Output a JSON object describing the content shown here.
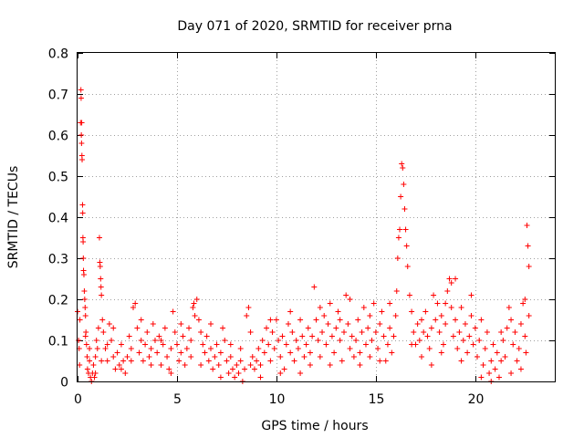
{
  "chart_data": {
    "type": "scatter",
    "title": "Day 071 of 2020, SRMTID for receiver prna",
    "xlabel": "GPS time / hours",
    "ylabel": "SRMTID / TECUs",
    "xlim": [
      0,
      24
    ],
    "ylim": [
      0,
      0.8
    ],
    "xticks": [
      0,
      5,
      10,
      15,
      20
    ],
    "yticks": [
      0,
      0.1,
      0.2,
      0.3,
      0.4,
      0.5,
      0.6,
      0.7,
      0.8
    ],
    "xtick_labels": [
      "0",
      "5",
      "10",
      "15",
      "20"
    ],
    "ytick_labels": [
      "0",
      "0.1",
      "0.2",
      "0.3",
      "0.4",
      "0.5",
      "0.6",
      "0.7",
      "0.8"
    ],
    "grid": true,
    "marker": "+",
    "color": "#ff0000",
    "series": [
      {
        "name": "SRMTID",
        "points": [
          [
            0.0,
            0.17
          ],
          [
            0.05,
            0.1
          ],
          [
            0.08,
            0.08
          ],
          [
            0.1,
            0.04
          ],
          [
            0.12,
            0.15
          ],
          [
            0.15,
            0.63
          ],
          [
            0.17,
            0.71
          ],
          [
            0.18,
            0.69
          ],
          [
            0.19,
            0.6
          ],
          [
            0.2,
            0.58
          ],
          [
            0.21,
            0.63
          ],
          [
            0.22,
            0.55
          ],
          [
            0.23,
            0.54
          ],
          [
            0.25,
            0.43
          ],
          [
            0.26,
            0.41
          ],
          [
            0.27,
            0.35
          ],
          [
            0.28,
            0.34
          ],
          [
            0.29,
            0.3
          ],
          [
            0.3,
            0.27
          ],
          [
            0.32,
            0.26
          ],
          [
            0.34,
            0.22
          ],
          [
            0.36,
            0.2
          ],
          [
            0.38,
            0.18
          ],
          [
            0.4,
            0.16
          ],
          [
            0.42,
            0.12
          ],
          [
            0.45,
            0.09
          ],
          [
            0.48,
            0.06
          ],
          [
            0.5,
            0.03
          ],
          [
            0.55,
            0.02
          ],
          [
            0.6,
            0.05
          ],
          [
            0.65,
            0.01
          ],
          [
            0.7,
            0.0
          ],
          [
            0.75,
            0.02
          ],
          [
            0.8,
            0.04
          ],
          [
            0.85,
            0.01
          ],
          [
            0.9,
            0.06
          ],
          [
            0.95,
            0.1
          ],
          [
            1.0,
            0.08
          ],
          [
            1.05,
            0.13
          ],
          [
            1.1,
            0.35
          ],
          [
            1.12,
            0.29
          ],
          [
            1.14,
            0.28
          ],
          [
            1.16,
            0.25
          ],
          [
            1.18,
            0.23
          ],
          [
            1.2,
            0.21
          ],
          [
            1.25,
            0.15
          ],
          [
            1.3,
            0.12
          ],
          [
            1.4,
            0.08
          ],
          [
            1.5,
            0.05
          ],
          [
            1.6,
            0.14
          ],
          [
            1.7,
            0.1
          ],
          [
            1.8,
            0.06
          ],
          [
            1.9,
            0.03
          ],
          [
            2.0,
            0.07
          ],
          [
            2.1,
            0.04
          ],
          [
            2.2,
            0.09
          ],
          [
            2.3,
            0.05
          ],
          [
            2.4,
            0.02
          ],
          [
            2.5,
            0.06
          ],
          [
            2.6,
            0.11
          ],
          [
            2.7,
            0.08
          ],
          [
            2.8,
            0.18
          ],
          [
            2.9,
            0.19
          ],
          [
            3.0,
            0.13
          ],
          [
            3.1,
            0.07
          ],
          [
            3.2,
            0.1
          ],
          [
            3.3,
            0.05
          ],
          [
            3.4,
            0.09
          ],
          [
            3.5,
            0.12
          ],
          [
            3.6,
            0.06
          ],
          [
            3.7,
            0.08
          ],
          [
            3.8,
            0.14
          ],
          [
            3.9,
            0.1
          ],
          [
            4.0,
            0.07
          ],
          [
            4.1,
            0.11
          ],
          [
            4.2,
            0.04
          ],
          [
            4.3,
            0.09
          ],
          [
            4.4,
            0.13
          ],
          [
            4.5,
            0.06
          ],
          [
            4.6,
            0.03
          ],
          [
            4.7,
            0.08
          ],
          [
            4.8,
            0.17
          ],
          [
            4.9,
            0.12
          ],
          [
            5.0,
            0.09
          ],
          [
            5.1,
            0.05
          ],
          [
            5.2,
            0.07
          ],
          [
            5.3,
            0.11
          ],
          [
            5.4,
            0.04
          ],
          [
            5.5,
            0.08
          ],
          [
            5.6,
            0.13
          ],
          [
            5.7,
            0.06
          ],
          [
            5.8,
            0.18
          ],
          [
            5.85,
            0.19
          ],
          [
            5.9,
            0.16
          ],
          [
            6.0,
            0.2
          ],
          [
            6.1,
            0.15
          ],
          [
            6.2,
            0.12
          ],
          [
            6.3,
            0.09
          ],
          [
            6.4,
            0.07
          ],
          [
            6.5,
            0.11
          ],
          [
            6.6,
            0.05
          ],
          [
            6.7,
            0.08
          ],
          [
            6.8,
            0.03
          ],
          [
            6.9,
            0.06
          ],
          [
            7.0,
            0.09
          ],
          [
            7.1,
            0.04
          ],
          [
            7.2,
            0.07
          ],
          [
            7.3,
            0.13
          ],
          [
            7.4,
            0.1
          ],
          [
            7.5,
            0.05
          ],
          [
            7.6,
            0.02
          ],
          [
            7.7,
            0.06
          ],
          [
            7.8,
            0.03
          ],
          [
            7.9,
            0.01
          ],
          [
            8.0,
            0.04
          ],
          [
            8.1,
            0.02
          ],
          [
            8.2,
            0.05
          ],
          [
            8.3,
            0.0
          ],
          [
            8.4,
            0.03
          ],
          [
            8.5,
            0.16
          ],
          [
            8.6,
            0.18
          ],
          [
            8.7,
            0.12
          ],
          [
            8.8,
            0.06
          ],
          [
            8.9,
            0.03
          ],
          [
            9.0,
            0.05
          ],
          [
            9.1,
            0.08
          ],
          [
            9.2,
            0.04
          ],
          [
            9.3,
            0.1
          ],
          [
            9.4,
            0.07
          ],
          [
            9.5,
            0.13
          ],
          [
            9.6,
            0.09
          ],
          [
            9.7,
            0.05
          ],
          [
            9.8,
            0.12
          ],
          [
            9.9,
            0.08
          ],
          [
            10.0,
            0.15
          ],
          [
            10.1,
            0.1
          ],
          [
            10.2,
            0.06
          ],
          [
            10.3,
            0.11
          ],
          [
            10.4,
            0.03
          ],
          [
            10.5,
            0.09
          ],
          [
            10.6,
            0.14
          ],
          [
            10.7,
            0.07
          ],
          [
            10.8,
            0.12
          ],
          [
            10.9,
            0.05
          ],
          [
            11.0,
            0.1
          ],
          [
            11.1,
            0.08
          ],
          [
            11.2,
            0.15
          ],
          [
            11.3,
            0.11
          ],
          [
            11.4,
            0.06
          ],
          [
            11.5,
            0.09
          ],
          [
            11.6,
            0.13
          ],
          [
            11.7,
            0.07
          ],
          [
            11.8,
            0.11
          ],
          [
            11.9,
            0.23
          ],
          [
            12.0,
            0.15
          ],
          [
            12.1,
            0.1
          ],
          [
            12.2,
            0.06
          ],
          [
            12.3,
            0.12
          ],
          [
            12.4,
            0.16
          ],
          [
            12.5,
            0.09
          ],
          [
            12.6,
            0.14
          ],
          [
            12.7,
            0.19
          ],
          [
            12.8,
            0.11
          ],
          [
            12.9,
            0.07
          ],
          [
            13.0,
            0.13
          ],
          [
            13.1,
            0.17
          ],
          [
            13.2,
            0.1
          ],
          [
            13.3,
            0.05
          ],
          [
            13.4,
            0.12
          ],
          [
            13.5,
            0.21
          ],
          [
            13.6,
            0.14
          ],
          [
            13.7,
            0.08
          ],
          [
            13.8,
            0.11
          ],
          [
            13.9,
            0.06
          ],
          [
            14.0,
            0.1
          ],
          [
            14.1,
            0.15
          ],
          [
            14.2,
            0.07
          ],
          [
            14.3,
            0.12
          ],
          [
            14.4,
            0.18
          ],
          [
            14.5,
            0.09
          ],
          [
            14.6,
            0.13
          ],
          [
            14.7,
            0.06
          ],
          [
            14.8,
            0.1
          ],
          [
            14.9,
            0.19
          ],
          [
            15.0,
            0.12
          ],
          [
            15.1,
            0.08
          ],
          [
            15.2,
            0.14
          ],
          [
            15.3,
            0.17
          ],
          [
            15.4,
            0.11
          ],
          [
            15.5,
            0.05
          ],
          [
            15.6,
            0.09
          ],
          [
            15.7,
            0.13
          ],
          [
            15.8,
            0.07
          ],
          [
            15.9,
            0.11
          ],
          [
            16.0,
            0.16
          ],
          [
            16.05,
            0.22
          ],
          [
            16.1,
            0.3
          ],
          [
            16.15,
            0.35
          ],
          [
            16.2,
            0.37
          ],
          [
            16.25,
            0.45
          ],
          [
            16.3,
            0.53
          ],
          [
            16.35,
            0.52
          ],
          [
            16.4,
            0.48
          ],
          [
            16.45,
            0.42
          ],
          [
            16.5,
            0.37
          ],
          [
            16.55,
            0.33
          ],
          [
            16.6,
            0.28
          ],
          [
            16.7,
            0.21
          ],
          [
            16.8,
            0.17
          ],
          [
            16.9,
            0.12
          ],
          [
            17.0,
            0.09
          ],
          [
            17.1,
            0.14
          ],
          [
            17.2,
            0.1
          ],
          [
            17.3,
            0.06
          ],
          [
            17.4,
            0.12
          ],
          [
            17.5,
            0.17
          ],
          [
            17.6,
            0.11
          ],
          [
            17.7,
            0.08
          ],
          [
            17.8,
            0.13
          ],
          [
            17.9,
            0.21
          ],
          [
            18.0,
            0.15
          ],
          [
            18.1,
            0.19
          ],
          [
            18.2,
            0.12
          ],
          [
            18.3,
            0.16
          ],
          [
            18.4,
            0.09
          ],
          [
            18.5,
            0.14
          ],
          [
            18.6,
            0.22
          ],
          [
            18.7,
            0.25
          ],
          [
            18.8,
            0.18
          ],
          [
            18.9,
            0.11
          ],
          [
            19.0,
            0.15
          ],
          [
            19.1,
            0.08
          ],
          [
            19.2,
            0.12
          ],
          [
            19.3,
            0.18
          ],
          [
            19.4,
            0.1
          ],
          [
            19.5,
            0.14
          ],
          [
            19.6,
            0.07
          ],
          [
            19.7,
            0.11
          ],
          [
            19.8,
            0.16
          ],
          [
            19.9,
            0.09
          ],
          [
            20.0,
            0.13
          ],
          [
            20.1,
            0.06
          ],
          [
            20.2,
            0.1
          ],
          [
            20.3,
            0.15
          ],
          [
            20.4,
            0.04
          ],
          [
            20.5,
            0.08
          ],
          [
            20.6,
            0.12
          ],
          [
            20.7,
            0.02
          ],
          [
            20.8,
            0.05
          ],
          [
            20.9,
            0.09
          ],
          [
            21.0,
            0.03
          ],
          [
            21.1,
            0.07
          ],
          [
            21.2,
            0.01
          ],
          [
            21.3,
            0.05
          ],
          [
            21.4,
            0.1
          ],
          [
            21.5,
            0.06
          ],
          [
            21.6,
            0.13
          ],
          [
            21.7,
            0.18
          ],
          [
            21.8,
            0.15
          ],
          [
            21.9,
            0.09
          ],
          [
            22.0,
            0.12
          ],
          [
            22.1,
            0.05
          ],
          [
            22.2,
            0.08
          ],
          [
            22.3,
            0.14
          ],
          [
            22.4,
            0.19
          ],
          [
            22.5,
            0.11
          ],
          [
            22.55,
            0.07
          ],
          [
            22.6,
            0.38
          ],
          [
            22.65,
            0.33
          ],
          [
            22.7,
            0.28
          ],
          [
            0.4,
            0.11
          ],
          [
            0.6,
            0.08
          ],
          [
            0.9,
            0.02
          ],
          [
            1.2,
            0.05
          ],
          [
            1.5,
            0.09
          ],
          [
            1.8,
            0.13
          ],
          [
            2.2,
            0.03
          ],
          [
            2.7,
            0.05
          ],
          [
            3.2,
            0.15
          ],
          [
            3.7,
            0.04
          ],
          [
            4.2,
            0.1
          ],
          [
            4.7,
            0.02
          ],
          [
            5.2,
            0.14
          ],
          [
            5.7,
            0.1
          ],
          [
            6.2,
            0.04
          ],
          [
            6.7,
            0.14
          ],
          [
            7.2,
            0.01
          ],
          [
            7.7,
            0.09
          ],
          [
            8.2,
            0.08
          ],
          [
            8.7,
            0.04
          ],
          [
            9.2,
            0.01
          ],
          [
            9.7,
            0.15
          ],
          [
            10.2,
            0.02
          ],
          [
            10.7,
            0.17
          ],
          [
            11.2,
            0.02
          ],
          [
            11.7,
            0.04
          ],
          [
            12.2,
            0.18
          ],
          [
            12.7,
            0.04
          ],
          [
            13.2,
            0.15
          ],
          [
            13.7,
            0.2
          ],
          [
            14.2,
            0.04
          ],
          [
            14.7,
            0.16
          ],
          [
            15.2,
            0.05
          ],
          [
            15.7,
            0.19
          ],
          [
            16.8,
            0.09
          ],
          [
            17.3,
            0.15
          ],
          [
            17.8,
            0.04
          ],
          [
            18.3,
            0.07
          ],
          [
            18.8,
            0.24
          ],
          [
            19.3,
            0.05
          ],
          [
            19.8,
            0.21
          ],
          [
            20.3,
            0.01
          ],
          [
            20.8,
            0.0
          ],
          [
            21.3,
            0.12
          ],
          [
            21.8,
            0.02
          ],
          [
            22.3,
            0.03
          ],
          [
            22.7,
            0.16
          ],
          [
            22.5,
            0.2
          ],
          [
            19.0,
            0.25
          ],
          [
            18.5,
            0.19
          ]
        ]
      }
    ]
  }
}
